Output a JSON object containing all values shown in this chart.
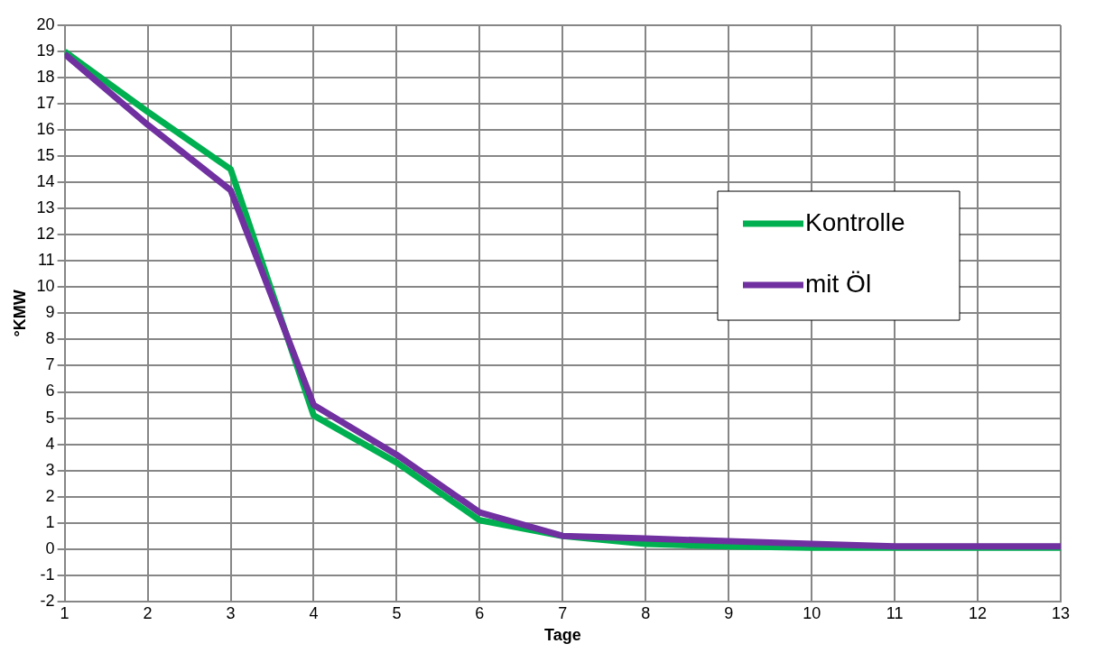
{
  "chart_data": {
    "type": "line",
    "xlabel": "Tage",
    "ylabel": "°KMW",
    "x": [
      1,
      2,
      3,
      4,
      5,
      6,
      7,
      8,
      9,
      10,
      11,
      12,
      13
    ],
    "series": [
      {
        "name": "Kontrolle",
        "color": "#00b050",
        "values": [
          19,
          16.7,
          14.5,
          5.1,
          3.3,
          1.1,
          0.5,
          0.2,
          0.1,
          0.05,
          0.05,
          0.05,
          0.05
        ]
      },
      {
        "name": "mit Öl",
        "color": "#7030a0",
        "values": [
          18.9,
          16.2,
          13.7,
          5.5,
          3.6,
          1.4,
          0.5,
          0.4,
          0.3,
          0.2,
          0.1,
          0.1,
          0.1
        ]
      }
    ],
    "xlim": [
      1,
      13
    ],
    "xticks": [
      1,
      2,
      3,
      4,
      5,
      6,
      7,
      8,
      9,
      10,
      11,
      12,
      13
    ],
    "ylim": [
      -2,
      20
    ],
    "yticks": [
      -2,
      -1,
      0,
      1,
      2,
      3,
      4,
      5,
      6,
      7,
      8,
      9,
      10,
      11,
      12,
      13,
      14,
      15,
      16,
      17,
      18,
      19,
      20
    ],
    "grid": true,
    "legend": "right",
    "marker": "none",
    "line_style": "solid"
  }
}
